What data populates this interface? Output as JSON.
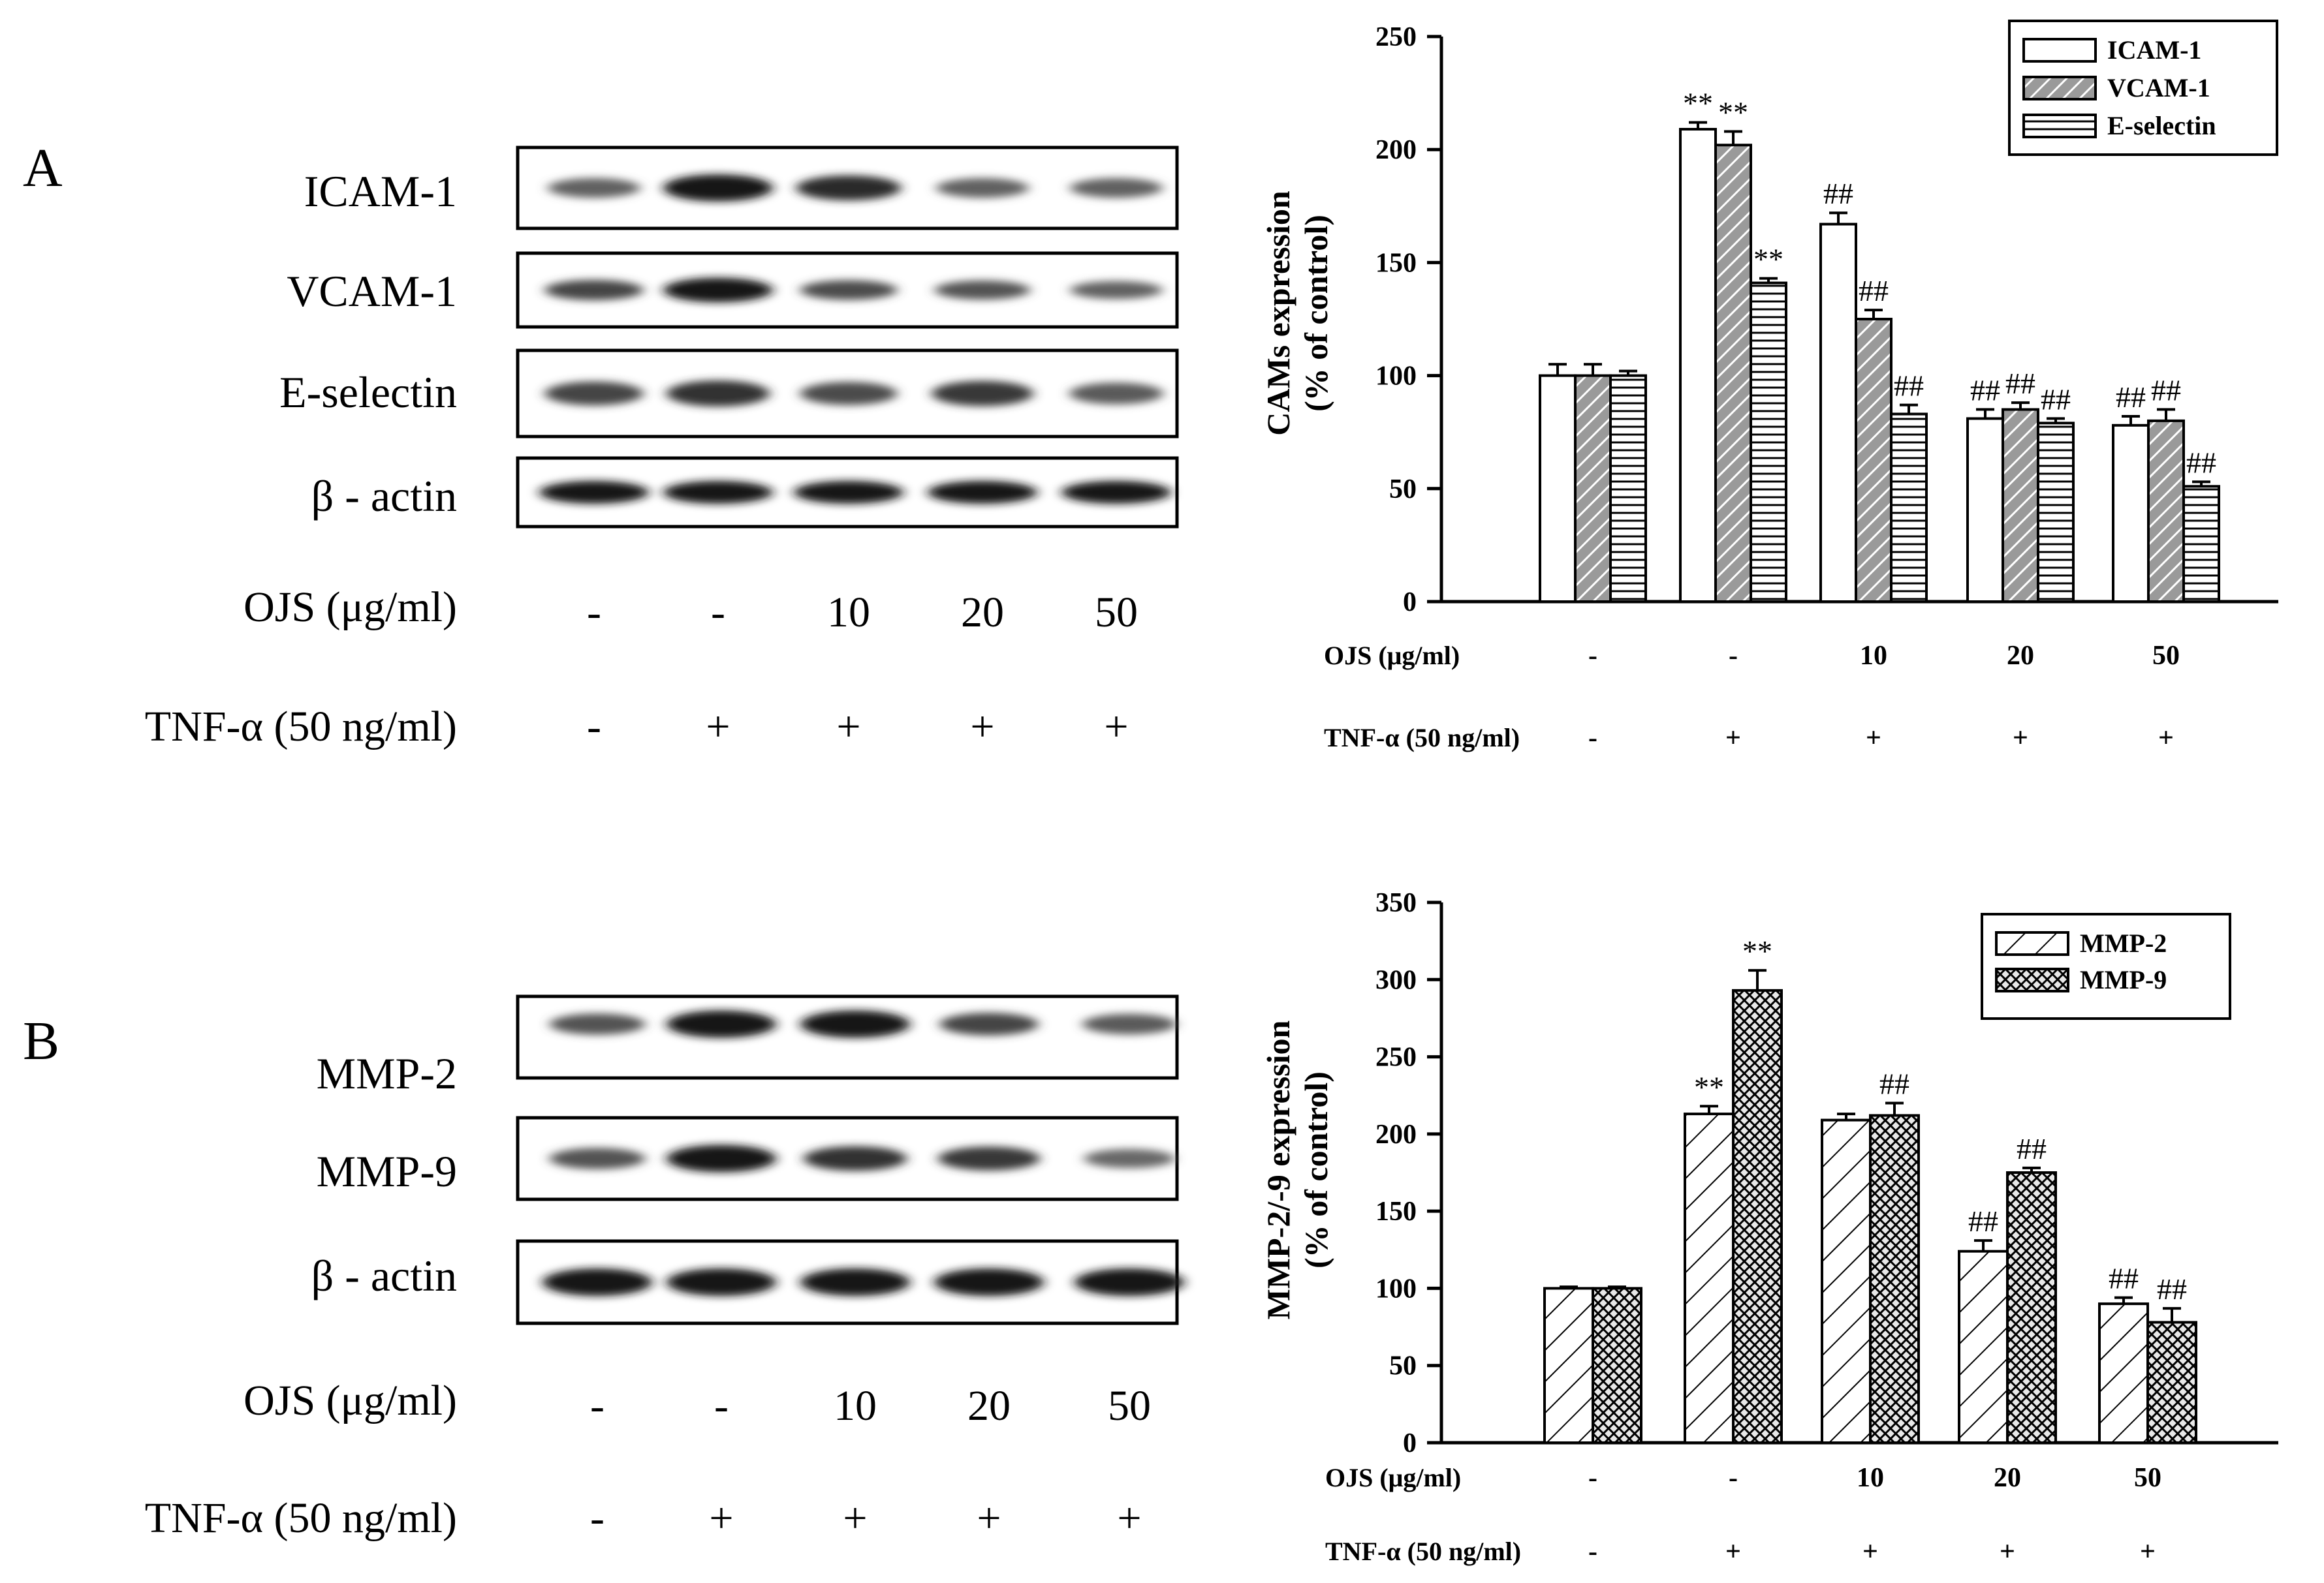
{
  "panel_a": {
    "letter": "A",
    "blot": {
      "rows": [
        {
          "label": "ICAM-1",
          "intensity": [
            0.45,
            1.0,
            0.85,
            0.45,
            0.45
          ]
        },
        {
          "label": "VCAM-1",
          "intensity": [
            0.65,
            1.0,
            0.6,
            0.55,
            0.45
          ]
        },
        {
          "label": "E-selectin",
          "intensity": [
            0.65,
            0.8,
            0.6,
            0.75,
            0.5
          ]
        },
        {
          "label": "β - actin",
          "intensity": [
            1.0,
            1.0,
            1.0,
            1.0,
            1.0
          ]
        }
      ],
      "ojs_label": "OJS (μg/ml)",
      "ojs_values": [
        "-",
        "-",
        "10",
        "20",
        "50"
      ],
      "tnf_label": "TNF-α (50 ng/ml)",
      "tnf_values": [
        "-",
        "+",
        "+",
        "+",
        "+"
      ]
    }
  },
  "panel_b": {
    "letter": "B",
    "blot": {
      "rows": [
        {
          "label": "MMP-2",
          "intensity": [
            0.55,
            1.0,
            1.0,
            0.65,
            0.5
          ]
        },
        {
          "label": "MMP-9",
          "intensity": [
            0.55,
            1.0,
            0.8,
            0.75,
            0.4
          ]
        },
        {
          "label": "β - actin",
          "intensity": [
            1.0,
            1.0,
            1.0,
            1.0,
            1.0
          ]
        }
      ],
      "ojs_label": "OJS (μg/ml)",
      "ojs_values": [
        "-",
        "-",
        "10",
        "20",
        "50"
      ],
      "tnf_label": "TNF-α (50 ng/ml)",
      "tnf_values": [
        "-",
        "+",
        "+",
        "+",
        "+"
      ]
    }
  },
  "chart_data": [
    {
      "type": "bar",
      "title": "",
      "ylabel": "CAMs expression (% of control)",
      "ylabel_lines": [
        "CAMs expression",
        "(% of control)"
      ],
      "ylim": [
        0,
        250
      ],
      "yticks": [
        0,
        50,
        100,
        150,
        200,
        250
      ],
      "categories": [
        "1",
        "2",
        "3",
        "4",
        "5"
      ],
      "x_rows": [
        {
          "label": "OJS (μg/ml)",
          "values": [
            "-",
            "-",
            "10",
            "20",
            "50"
          ]
        },
        {
          "label": "TNF-α (50 ng/ml)",
          "values": [
            "-",
            "+",
            "+",
            "+",
            "+"
          ]
        }
      ],
      "legend_position": "top-right",
      "series": [
        {
          "name": "ICAM-1",
          "pattern": "open",
          "values": [
            100,
            209,
            167,
            81,
            78
          ],
          "errors": [
            5,
            3,
            5,
            4,
            4
          ],
          "annotations": [
            "",
            "**",
            "##",
            "##",
            "##"
          ]
        },
        {
          "name": "VCAM-1",
          "pattern": "diagonal",
          "values": [
            100,
            202,
            125,
            85,
            80
          ],
          "errors": [
            5,
            6,
            4,
            3,
            5
          ],
          "annotations": [
            "",
            "**",
            "##",
            "##",
            "##"
          ]
        },
        {
          "name": "E-selectin",
          "pattern": "horizontal",
          "values": [
            100,
            141,
            83,
            79,
            51
          ],
          "errors": [
            2,
            2,
            4,
            2,
            2
          ],
          "annotations": [
            "",
            "**",
            "##",
            "##",
            "##"
          ]
        }
      ]
    },
    {
      "type": "bar",
      "title": "",
      "ylabel": "MMP-2/-9 expression (% of control)",
      "ylabel_lines": [
        "MMP-2/-9 expression",
        "(% of control)"
      ],
      "ylim": [
        0,
        350
      ],
      "yticks": [
        0,
        50,
        100,
        150,
        200,
        250,
        300,
        350
      ],
      "categories": [
        "1",
        "2",
        "3",
        "4",
        "5"
      ],
      "x_rows": [
        {
          "label": "OJS (μg/ml)",
          "values": [
            "-",
            "-",
            "10",
            "20",
            "50"
          ]
        },
        {
          "label": "TNF-α (50 ng/ml)",
          "values": [
            "-",
            "+",
            "+",
            "+",
            "+"
          ]
        }
      ],
      "legend_position": "top-right",
      "series": [
        {
          "name": "MMP-2",
          "pattern": "wide-diagonal",
          "values": [
            100,
            213,
            209,
            124,
            90
          ],
          "errors": [
            1,
            5,
            4,
            7,
            4
          ],
          "annotations": [
            "",
            "**",
            "",
            "##",
            "##"
          ]
        },
        {
          "name": "MMP-9",
          "pattern": "crosshatch",
          "values": [
            100,
            293,
            212,
            175,
            78
          ],
          "errors": [
            1,
            13,
            8,
            3,
            9
          ],
          "annotations": [
            "",
            "**",
            "##",
            "##",
            "##"
          ]
        }
      ]
    }
  ]
}
